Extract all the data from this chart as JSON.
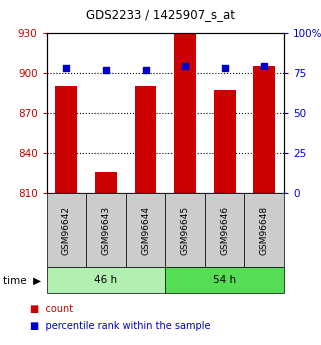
{
  "title": "GDS2233 / 1425907_s_at",
  "samples": [
    "GSM96642",
    "GSM96643",
    "GSM96644",
    "GSM96645",
    "GSM96646",
    "GSM96648"
  ],
  "groups": [
    {
      "label": "46 h",
      "indices": [
        0,
        1,
        2
      ],
      "color": "#b2f0b2"
    },
    {
      "label": "54 h",
      "indices": [
        3,
        4,
        5
      ],
      "color": "#55dd55"
    }
  ],
  "counts": [
    890,
    826,
    890,
    930,
    887,
    905
  ],
  "percentile_ranks": [
    78,
    77,
    77,
    79,
    78,
    79
  ],
  "ylim_left": [
    810,
    930
  ],
  "ylim_right": [
    0,
    100
  ],
  "yticks_left": [
    810,
    840,
    870,
    900,
    930
  ],
  "yticks_right": [
    0,
    25,
    50,
    75,
    100
  ],
  "ytick_labels_right": [
    "0",
    "25",
    "50",
    "75",
    "100%"
  ],
  "bar_color": "#cc0000",
  "dot_color": "#0000cc",
  "left_tick_color": "#cc0000",
  "right_tick_color": "#0000cc",
  "legend_count_color": "#cc0000",
  "legend_pct_color": "#0000cc",
  "bar_width": 0.55,
  "sample_box_color": "#cccccc"
}
